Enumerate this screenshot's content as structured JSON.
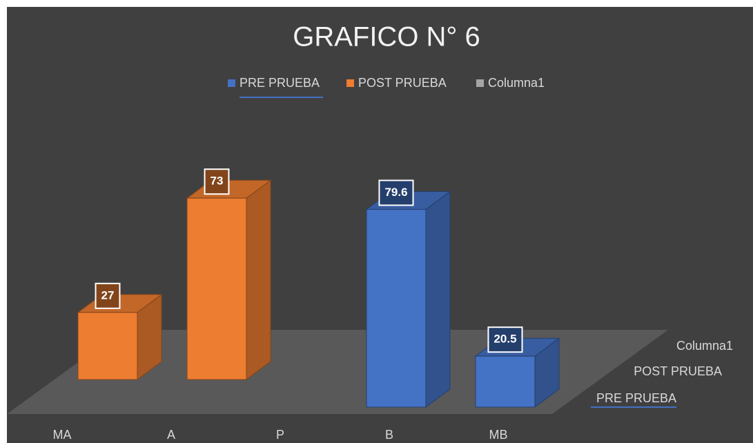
{
  "chart_data": {
    "type": "bar3d",
    "title": "GRAFICO N° 6",
    "categories": [
      "MA",
      "A",
      "P",
      "B",
      "MB"
    ],
    "series": [
      {
        "name": "PRE PRUEBA",
        "color": "#4472c4",
        "values": [
          null,
          null,
          null,
          79.6,
          20.5
        ]
      },
      {
        "name": "POST PRUEBA",
        "color": "#ed7d31",
        "values": [
          27,
          73,
          null,
          null,
          null
        ]
      },
      {
        "name": "Columna1",
        "color": "#a5a5a5",
        "values": [
          null,
          null,
          null,
          null,
          null
        ]
      }
    ],
    "legend": "top"
  }
}
